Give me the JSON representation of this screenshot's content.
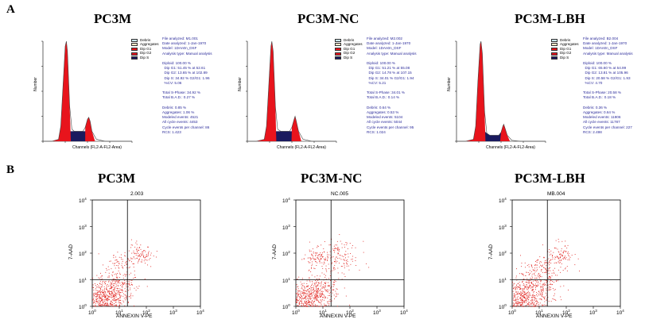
{
  "panels": {
    "a": "A",
    "b": "B"
  },
  "cell_cycle": [
    {
      "title": "PC3M",
      "legend": [
        "Debris",
        "Aggregates",
        "Dip G1",
        "Dip G2",
        "Dip S"
      ],
      "ylabel": "Number",
      "xlabel": "Channels (FL2-A-FL2-Area)",
      "stats": [
        "File analyzed: M1.001",
        "Date analyzed: 1-Jan-1970",
        "Model: 1DAn0n_DSF",
        "Analysis type: Manual analysis",
        "",
        "Diploid: 100.00 %",
        "  Dip G1: 51.45 % at 52.61",
        "  Dip G2: 13.65 % at 102.89",
        "  Dip S: 34.92 % G2/G1: 1.96",
        "  %CV: 5.06",
        "",
        "Total S-Phase: 34.92 %",
        "Total B.A.D.: 0.27 %",
        "",
        "Debris: 0.85 %",
        "Aggregates: 1.06 %",
        "Modeled events: 4521",
        "All cycle events: 4453",
        "Cycle events per channel: 86",
        "RCS: 1.423"
      ]
    },
    {
      "title": "PC3M-NC",
      "legend": [
        "Debris",
        "Aggregates",
        "Dip G1",
        "Dip G2",
        "Dip S"
      ],
      "ylabel": "Number",
      "xlabel": "Channels (FL2-A-FL2-Area)",
      "stats": [
        "File analyzed: M2.002",
        "Date analyzed: 1-Jan-1970",
        "Model: 1DAn0n_DSF",
        "Analysis type: Manual analysis",
        "",
        "Diploid: 100.00 %",
        "  Dip G1: 51.21 % at 55.08",
        "  Dip G2: 14.78 % at 107.15",
        "  Dip S: 34.01 % G2/G1: 1.94",
        "  %CV: 5.21",
        "",
        "Total S-Phase: 34.01 %",
        "Total B.A.D.: 0.14 %",
        "",
        "Debris: 0.64 %",
        "Aggregates: 0.53 %",
        "Modeled events: 5104",
        "All cycle events: 5044",
        "Cycle events per channel: 95",
        "RCS: 1.024"
      ]
    },
    {
      "title": "PC3M-LBH",
      "legend": [
        "Debris",
        "Aggregates",
        "Dip G1",
        "Dip G2",
        "Dip S"
      ],
      "ylabel": "Number",
      "xlabel": "Channels (FL2-A-FL2-Area)",
      "stats": [
        "File analyzed: B2.004",
        "Date analyzed: 1-Jan-1970",
        "Model: 1DAn0n_DSF",
        "Analysis type: Manual analysis",
        "",
        "Diploid: 100.00 %",
        "  Dip G1: 65.60 % at 54.99",
        "  Dip G2: 13.81 % at 105.96",
        "  Dip S: 20.58 % G2/G1: 1.93",
        "  %CV: 4.70",
        "",
        "Total S-Phase: 20.58 %",
        "Total B.A.D.: 0.18 %",
        "",
        "Debris: 0.36 %",
        "Aggregates: 0.64 %",
        "Modeled events: 11906",
        "All cycle events: 11787",
        "Cycle events per channel: 227",
        "RCS: 2.498"
      ]
    }
  ],
  "apoptosis": [
    {
      "title": "PC3M",
      "plot_label": "2.003",
      "xlabel": "ANNEXIN V-PE",
      "ylabel": "7-AAD"
    },
    {
      "title": "PC3M-NC",
      "plot_label": "NC.005",
      "xlabel": "ANNEXIN V-PE",
      "ylabel": "7-AAD"
    },
    {
      "title": "PC3M-LBH",
      "plot_label": "MB.004",
      "xlabel": "ANNEXIN V-PE",
      "ylabel": "7-AAD"
    }
  ],
  "tick_base": "10",
  "tick_exps": [
    "0",
    "1",
    "2",
    "3",
    "4"
  ],
  "colors": {
    "g1": "#e8141c",
    "s_phase": "#1a1a5e",
    "debris": "#c8e6f0",
    "aggregates": "#f4e6c8",
    "dip_g2": "#e8141c",
    "scatter": "#e0201c",
    "stats_text": "#2b2b9a"
  },
  "chart_data": [
    {
      "type": "area",
      "title": "PC3M",
      "xlabel": "Channels (FL2-A-FL2-Area)",
      "ylabel": "Number",
      "x": [
        0,
        20,
        35,
        40,
        45,
        50,
        52.6,
        55,
        60,
        65,
        70,
        80,
        90,
        95,
        100,
        102.9,
        106,
        110,
        120,
        140,
        200
      ],
      "y": [
        0,
        0,
        0.02,
        0.15,
        0.55,
        0.95,
        1.0,
        0.9,
        0.35,
        0.12,
        0.1,
        0.1,
        0.1,
        0.14,
        0.22,
        0.24,
        0.2,
        0.1,
        0.02,
        0,
        0
      ]
    },
    {
      "type": "area",
      "title": "PC3M-NC",
      "xlabel": "Channels (FL2-A-FL2-Area)",
      "ylabel": "Number",
      "x": [
        0,
        20,
        38,
        43,
        48,
        53,
        55,
        58,
        63,
        68,
        75,
        85,
        95,
        100,
        105,
        107.2,
        110,
        115,
        125,
        145,
        200
      ],
      "y": [
        0,
        0,
        0.02,
        0.15,
        0.55,
        0.95,
        1.0,
        0.9,
        0.35,
        0.12,
        0.1,
        0.1,
        0.1,
        0.14,
        0.22,
        0.25,
        0.2,
        0.1,
        0.02,
        0,
        0
      ]
    },
    {
      "type": "area",
      "title": "PC3M-LBH",
      "xlabel": "Channels (FL2-A-FL2-Area)",
      "ylabel": "Number",
      "x": [
        0,
        20,
        38,
        43,
        48,
        53,
        55,
        58,
        63,
        68,
        75,
        85,
        95,
        100,
        104,
        106,
        109,
        114,
        124,
        144,
        200
      ],
      "y": [
        0,
        0,
        0.02,
        0.15,
        0.6,
        0.97,
        1.0,
        0.88,
        0.3,
        0.08,
        0.06,
        0.06,
        0.06,
        0.09,
        0.15,
        0.17,
        0.13,
        0.06,
        0.01,
        0,
        0
      ]
    },
    {
      "type": "scatter",
      "title": "PC3M",
      "xlabel": "ANNEXIN V-PE",
      "ylabel": "7-AAD",
      "xlim": [
        1,
        10000
      ],
      "ylim": [
        1,
        10000
      ],
      "log": true,
      "quadrant_gate": {
        "x": 20,
        "y": 10
      },
      "clusters": [
        {
          "x": 2.5,
          "y": 1.8,
          "spread": 0.4,
          "weight": 0.6
        },
        {
          "x": 8,
          "y": 6,
          "spread": 0.35,
          "weight": 0.22
        },
        {
          "x": 60,
          "y": 90,
          "spread": 0.25,
          "weight": 0.1
        },
        {
          "x": 12,
          "y": 40,
          "spread": 0.3,
          "weight": 0.08
        }
      ]
    },
    {
      "type": "scatter",
      "title": "PC3M-NC",
      "xlabel": "ANNEXIN V-PE",
      "ylabel": "7-AAD",
      "xlim": [
        1,
        10000
      ],
      "ylim": [
        1,
        10000
      ],
      "log": true,
      "quadrant_gate": {
        "x": 20,
        "y": 10
      },
      "clusters": [
        {
          "x": 2.5,
          "y": 1.8,
          "spread": 0.4,
          "weight": 0.55
        },
        {
          "x": 8,
          "y": 5,
          "spread": 0.35,
          "weight": 0.2
        },
        {
          "x": 40,
          "y": 70,
          "spread": 0.35,
          "weight": 0.15
        },
        {
          "x": 6,
          "y": 70,
          "spread": 0.2,
          "weight": 0.1
        }
      ]
    },
    {
      "type": "scatter",
      "title": "PC3M-LBH",
      "xlabel": "ANNEXIN V-PE",
      "ylabel": "7-AAD",
      "xlim": [
        1,
        10000
      ],
      "ylim": [
        1,
        10000
      ],
      "log": true,
      "quadrant_gate": {
        "x": 20,
        "y": 10
      },
      "clusters": [
        {
          "x": 2.5,
          "y": 1.8,
          "spread": 0.4,
          "weight": 0.55
        },
        {
          "x": 10,
          "y": 8,
          "spread": 0.4,
          "weight": 0.25
        },
        {
          "x": 60,
          "y": 80,
          "spread": 0.25,
          "weight": 0.12
        },
        {
          "x": 15,
          "y": 30,
          "spread": 0.3,
          "weight": 0.08
        }
      ]
    }
  ]
}
